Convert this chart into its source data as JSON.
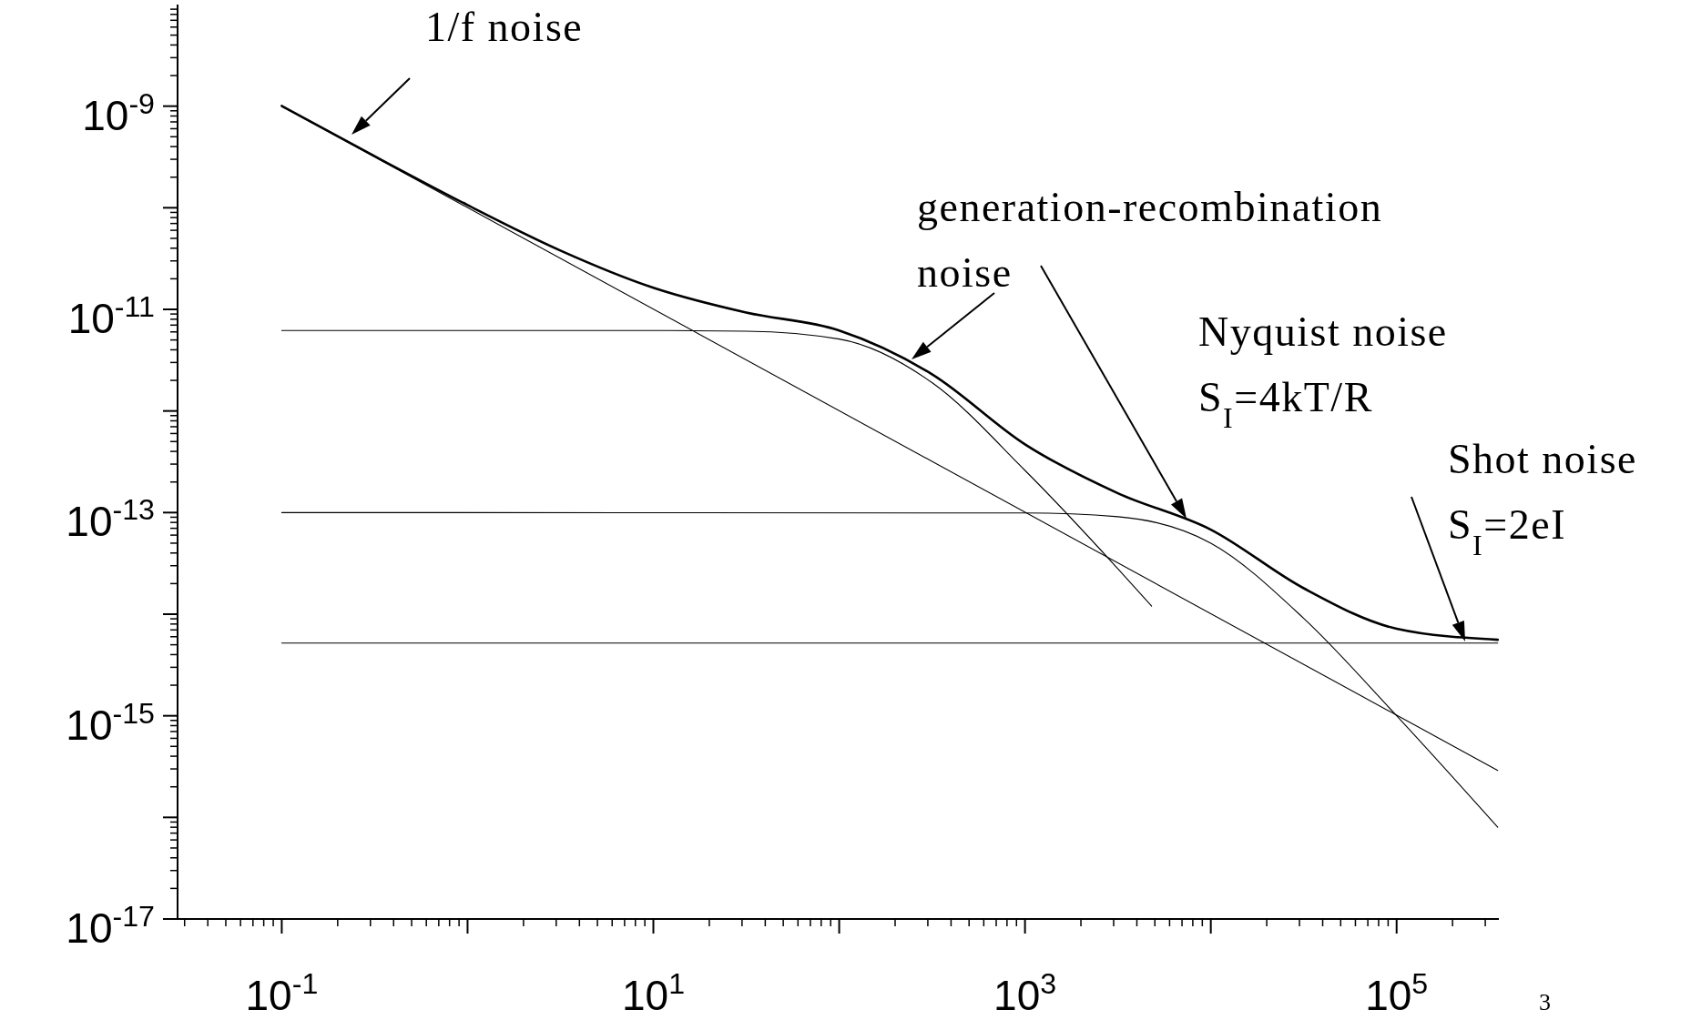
{
  "chart_data": {
    "type": "line",
    "log": "xy",
    "grid": false,
    "marker": "none",
    "line_style": "solid",
    "xlim": [
      0.0275,
      355000
    ],
    "ylim": [
      1e-17,
      1e-08
    ],
    "xticks": [
      {
        "value": 0.1,
        "label": "10$^{-1}$"
      },
      {
        "value": 1,
        "label": null
      },
      {
        "value": 10,
        "label": "10$^{1}$"
      },
      {
        "value": 100,
        "label": null
      },
      {
        "value": 1000,
        "label": "10$^{3}$"
      },
      {
        "value": 10000,
        "label": null
      },
      {
        "value": 100000,
        "label": "10$^{5}$"
      }
    ],
    "yticks": [
      {
        "value": 1e-17,
        "label": "10$^{-17}$"
      },
      {
        "value": 1e-16,
        "label": null
      },
      {
        "value": 1e-15,
        "label": "10$^{-15}$"
      },
      {
        "value": 1e-14,
        "label": null
      },
      {
        "value": 1e-13,
        "label": "10$^{-13}$"
      },
      {
        "value": 1e-12,
        "label": null
      },
      {
        "value": 1e-11,
        "label": "10$^{-11}$"
      },
      {
        "value": 1e-10,
        "label": null
      },
      {
        "value": 1e-09,
        "label": "10$^{-9}$"
      }
    ],
    "series": [
      {
        "color": "#000000",
        "x": [
          0.1,
          0.316,
          1,
          3.16,
          10,
          31.6,
          100,
          316,
          1000,
          3162,
          10000,
          31623,
          100000,
          350000
        ],
        "values": [
          1.006e-09,
          3.22e-10,
          1.063e-10,
          3.79e-11,
          1.63e-11,
          9.3e-12,
          6.2e-12,
          2.3e-12,
          4.7e-13,
          1.55e-13,
          6.8e-14,
          1.8e-14,
          7.2e-15,
          5.6e-15
        ]
      },
      {
        "color": "#000000",
        "x": [
          0.1,
          350000
        ],
        "values": [
          1e-09,
          2.9e-16
        ]
      },
      {
        "color": "#000000",
        "x": [
          0.1,
          10,
          31.6,
          100,
          316,
          1000,
          3162,
          4800
        ],
        "values": [
          6.2e-12,
          6.2e-12,
          6.1e-12,
          5.1e-12,
          1.9e-12,
          2.6e-13,
          2.8e-14,
          1.2e-14
        ]
      },
      {
        "color": "#000000",
        "x": [
          0.1,
          1000,
          3162,
          10000,
          31623,
          100000,
          350000
        ],
        "values": [
          1e-13,
          9.9e-14,
          9.1e-14,
          5e-14,
          9.1e-15,
          1e-15,
          8e-17
        ]
      },
      {
        "color": "#000000",
        "x": [
          0.1,
          350000
        ],
        "values": [
          5.2e-15,
          5.2e-15
        ]
      }
    ],
    "annotations": [
      "1/f noise",
      "generation-recombination\nnoise",
      "Nyquist noise\nS$_{I}$=4kT/R",
      "Shot noise\nS$_{I}$=2eI",
      "3"
    ]
  }
}
